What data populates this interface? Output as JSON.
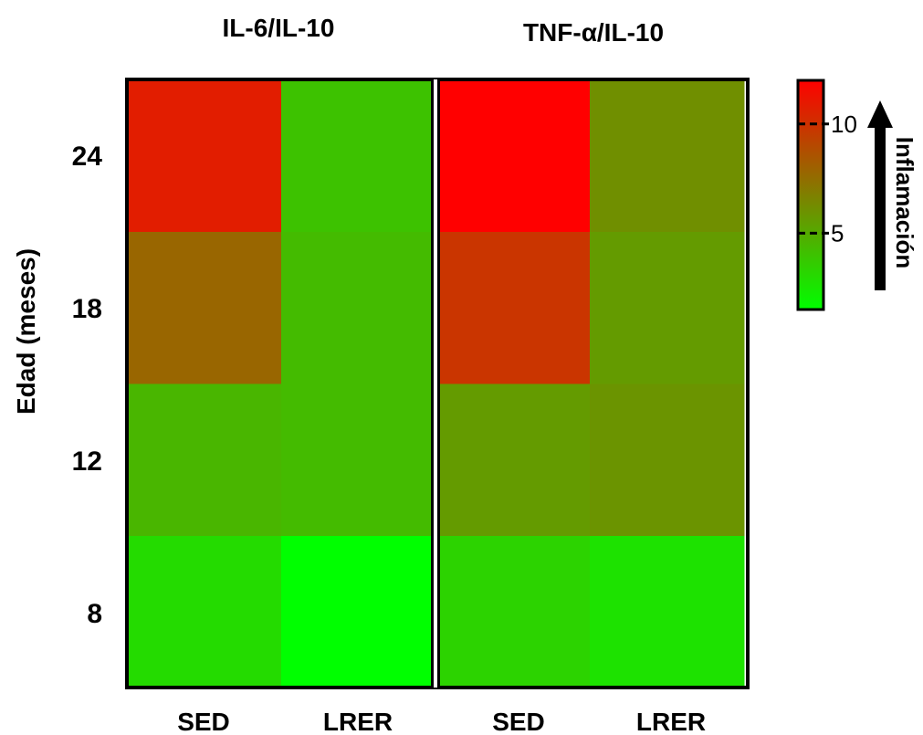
{
  "chart_data": {
    "type": "heatmap",
    "panels": [
      {
        "title": "IL-6/IL-10",
        "columns": [
          "SED",
          "LRER"
        ],
        "values": [
          [
            3.0,
            1.5
          ],
          [
            4.5,
            4.3
          ],
          [
            7.8,
            4.3
          ],
          [
            10.8,
            4.0
          ]
        ]
      },
      {
        "title": "TNF-α/IL-10",
        "columns": [
          "SED",
          "LRER"
        ],
        "values": [
          [
            3.3,
            2.7
          ],
          [
            5.6,
            5.9
          ],
          [
            9.8,
            5.6
          ],
          [
            12.0,
            6.1
          ]
        ]
      }
    ],
    "rows": [
      "8",
      "12",
      "18",
      "24"
    ],
    "ylabel": "Edad (meses)",
    "colorbar": {
      "label": "Inflamación",
      "range": [
        1.5,
        12
      ],
      "ticks": [
        "5",
        "10"
      ],
      "low_color": "#00FF00",
      "high_color": "#FF0000"
    }
  }
}
